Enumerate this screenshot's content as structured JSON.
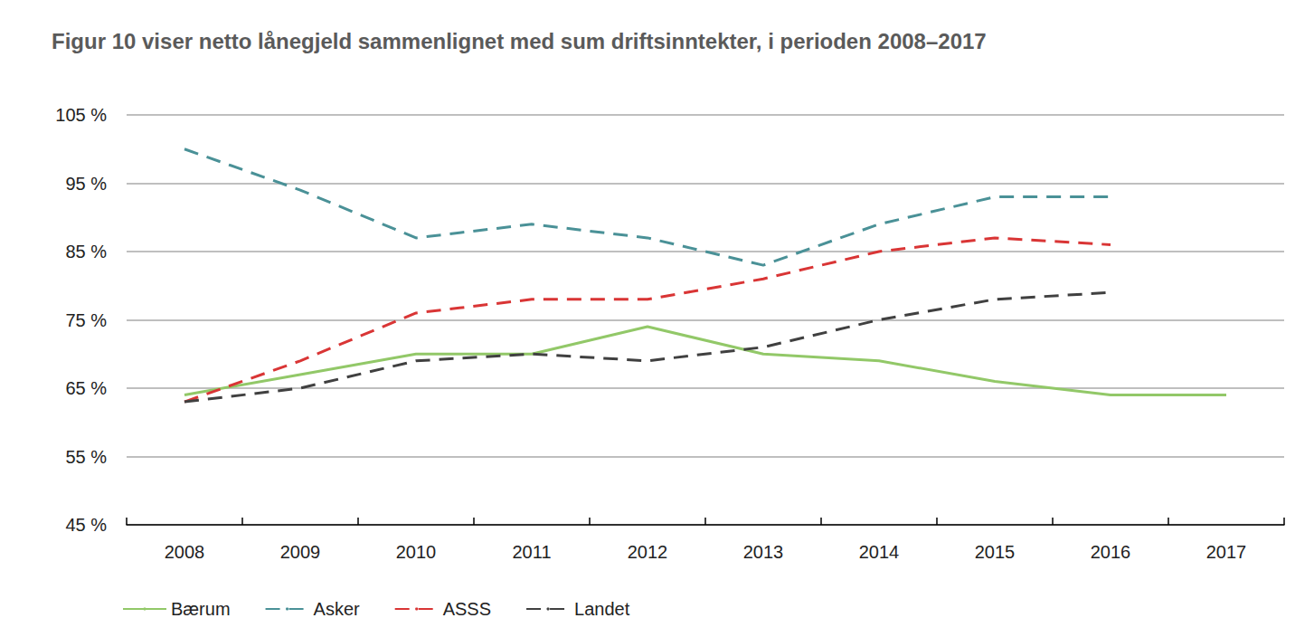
{
  "chart_data": {
    "type": "line",
    "title": "Figur 10 viser netto lånegjeld sammenlignet med sum driftsinntekter, i perioden 2008–2017",
    "categories": [
      "2008",
      "2009",
      "2010",
      "2011",
      "2012",
      "2013",
      "2014",
      "2015",
      "2016",
      "2017"
    ],
    "series": [
      {
        "name": "Bærum",
        "color": "#92c868",
        "line_style": "solid",
        "marker": "none",
        "values": [
          64,
          67,
          70,
          70,
          74,
          70,
          69,
          66,
          64,
          64
        ]
      },
      {
        "name": "Asker",
        "color": "#4a9197",
        "line_style": "dashed",
        "marker": "none",
        "values": [
          100,
          94,
          87,
          89,
          87,
          83,
          89,
          93,
          93,
          null
        ]
      },
      {
        "name": "ASSS",
        "color": "#d93535",
        "line_style": "dashed",
        "marker": "none",
        "values": [
          63,
          69,
          76,
          78,
          78,
          81,
          85,
          87,
          86,
          null
        ]
      },
      {
        "name": "Landet",
        "color": "#404040",
        "line_style": "dashed",
        "marker": "none",
        "values": [
          63,
          65,
          69,
          70,
          69,
          71,
          75,
          78,
          79,
          null
        ]
      }
    ],
    "ylim": [
      45,
      105
    ],
    "yticks": [
      {
        "value": 45,
        "label": "45 %"
      },
      {
        "value": 55,
        "label": "55 %"
      },
      {
        "value": 65,
        "label": "65 %"
      },
      {
        "value": 75,
        "label": "75 %"
      },
      {
        "value": 85,
        "label": "85 %"
      },
      {
        "value": 95,
        "label": "95 %"
      },
      {
        "value": 105,
        "label": "105 %"
      }
    ],
    "grid": true,
    "legend": "bottom-left"
  }
}
